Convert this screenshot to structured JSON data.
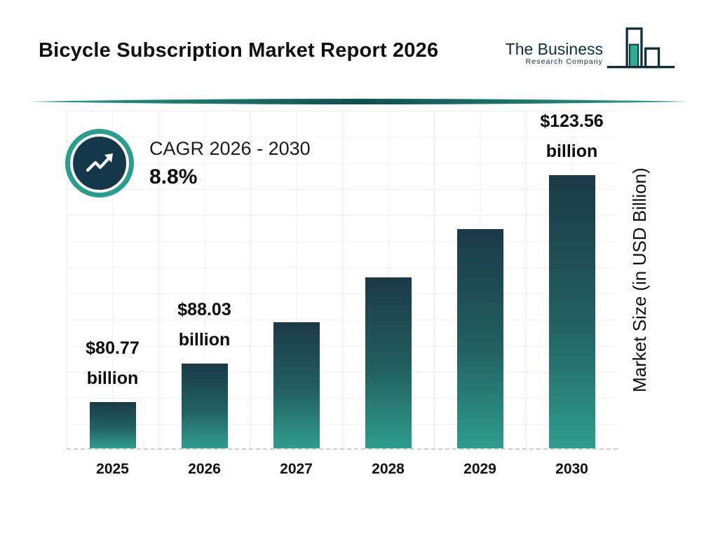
{
  "header": {
    "title": "Bicycle Subscription Market Report 2026",
    "logo": {
      "line1": "The Business",
      "line2": "Research Company"
    }
  },
  "cagr": {
    "label": "CAGR 2026 - 2030",
    "value": "8.8%"
  },
  "chart_data": {
    "type": "bar",
    "title": "Bicycle Subscription Market Report 2026",
    "categories": [
      "2025",
      "2026",
      "2027",
      "2028",
      "2029",
      "2030"
    ],
    "values": [
      80.77,
      88.03,
      95.78,
      104.21,
      113.38,
      123.56
    ],
    "bar_labels": [
      {
        "value": "$80.77",
        "unit": "billion"
      },
      {
        "value": "$88.03",
        "unit": "billion"
      },
      null,
      null,
      null,
      {
        "value": "$123.56",
        "unit": "billion"
      }
    ],
    "xlabel": "",
    "ylabel": "Market Size (in USD Billion)",
    "ylim": [
      72,
      136
    ],
    "grid": true,
    "legend": false,
    "cagr_label": "CAGR 2026 - 2030",
    "cagr_value": "8.8%",
    "colors": {
      "bar_gradient_top": "#1b3948",
      "bar_gradient_bottom": "#2f9d8c",
      "badge_ring": "#2a9e8e",
      "badge_fill": "#14384a",
      "gridline": "#ececec",
      "divider": "#1d5f63"
    }
  }
}
